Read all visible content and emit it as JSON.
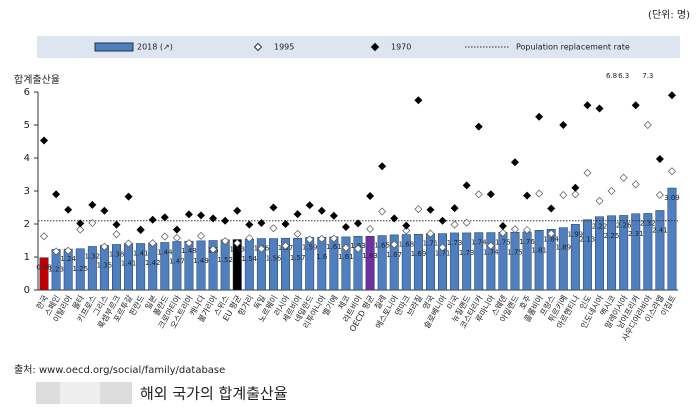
{
  "chart_data": {
    "type": "bar",
    "unit_note": "(단위: 명)",
    "y_label": "합계출산율",
    "source": "출처: www.oecd.org/social/family/database",
    "caption": "해외 국가의 합계출산율",
    "categories": [
      "한국",
      "스페인",
      "이탈리아",
      "몰타",
      "키프로스",
      "그리스",
      "룩셈부르크",
      "포르투갈",
      "핀란드",
      "일본",
      "폴란드",
      "크로아티아",
      "오스트리아",
      "캐나다",
      "불가리아",
      "스위스",
      "EU 평균",
      "헝가리",
      "독일",
      "노르웨이",
      "러시아",
      "세르비아",
      "네덜란드",
      "리투아니아",
      "벨기에",
      "체코",
      "라트비아",
      "OECD 평균",
      "칠레",
      "에스토니아",
      "덴마크",
      "브라질",
      "영국",
      "슬로베니아",
      "미국",
      "뉴질랜드",
      "코스타리카",
      "루마니아",
      "스웨덴",
      "아일랜드",
      "호주",
      "콜롬비아",
      "프랑스",
      "튀르키예",
      "아르헨티나",
      "인도",
      "인도네시아",
      "멕시코",
      "말레이시아",
      "남아프리카",
      "사우디아라비아",
      "이스라엘",
      "이집트"
    ],
    "series": [
      {
        "name": "2018 (↗)",
        "color": "#4f7fbf",
        "values": [
          0.98,
          1.23,
          1.24,
          1.25,
          1.32,
          1.35,
          1.38,
          1.41,
          1.41,
          1.42,
          1.44,
          1.47,
          1.48,
          1.49,
          1.5,
          1.52,
          1.53,
          1.54,
          1.56,
          1.56,
          1.57,
          1.57,
          1.59,
          1.6,
          1.61,
          1.61,
          1.63,
          1.63,
          1.65,
          1.67,
          1.68,
          1.69,
          1.71,
          1.71,
          1.73,
          1.73,
          1.74,
          1.74,
          1.75,
          1.75,
          1.76,
          1.81,
          1.84,
          1.89,
          1.99,
          2.13,
          2.22,
          2.25,
          2.26,
          2.31,
          2.32,
          2.41,
          3.09
        ]
      },
      {
        "name": "1995",
        "color": "#ffffff",
        "values": [
          1.63,
          1.17,
          1.19,
          1.83,
          2.03,
          1.31,
          1.69,
          1.41,
          1.81,
          1.42,
          1.62,
          1.58,
          1.42,
          1.64,
          1.23,
          1.48,
          1.42,
          1.57,
          1.25,
          1.87,
          1.34,
          1.7,
          1.53,
          1.55,
          1.56,
          1.28,
          1.25,
          1.85,
          2.38,
          1.38,
          1.8,
          2.45,
          1.71,
          1.29,
          1.98,
          2.04,
          2.9,
          1.34,
          1.73,
          1.84,
          1.82,
          2.92,
          1.71,
          2.88,
          2.9,
          3.55,
          2.7,
          3.0,
          3.4,
          3.2,
          5.0,
          2.88,
          3.6
        ]
      },
      {
        "name": "1970",
        "color": "#000000",
        "values": [
          4.53,
          2.9,
          2.43,
          2.02,
          2.58,
          2.4,
          1.98,
          2.83,
          1.83,
          2.13,
          2.2,
          1.83,
          2.29,
          2.26,
          2.17,
          2.1,
          2.4,
          1.98,
          2.03,
          2.5,
          2.0,
          2.3,
          2.57,
          2.4,
          2.25,
          1.91,
          2.02,
          2.85,
          3.75,
          2.17,
          1.95,
          5.75,
          2.43,
          2.1,
          2.48,
          3.17,
          4.95,
          2.9,
          1.94,
          3.87,
          2.86,
          5.25,
          2.47,
          5.0,
          3.1,
          5.6,
          5.5,
          6.8,
          6.3,
          5.6,
          7.3,
          3.97,
          5.9
        ],
        "value_labels": [
          null,
          null,
          null,
          null,
          null,
          null,
          null,
          null,
          null,
          null,
          null,
          null,
          null,
          null,
          null,
          null,
          null,
          null,
          null,
          null,
          null,
          null,
          null,
          null,
          null,
          null,
          null,
          null,
          null,
          null,
          null,
          null,
          null,
          null,
          null,
          null,
          null,
          null,
          null,
          null,
          null,
          null,
          null,
          null,
          null,
          null,
          null,
          "6.8",
          "6.3",
          null,
          "7.3",
          null,
          null
        ]
      }
    ],
    "reference_line": {
      "name": "Population replacement rate",
      "value": 2.1
    },
    "highlight_colors": {
      "한국": "#c00000",
      "EU 평균": "#000000",
      "OECD 평균": "#7030a0"
    },
    "ylim": [
      0,
      6
    ],
    "yticks": [
      0,
      1,
      2,
      3,
      4,
      5,
      6
    ],
    "grid": false
  }
}
